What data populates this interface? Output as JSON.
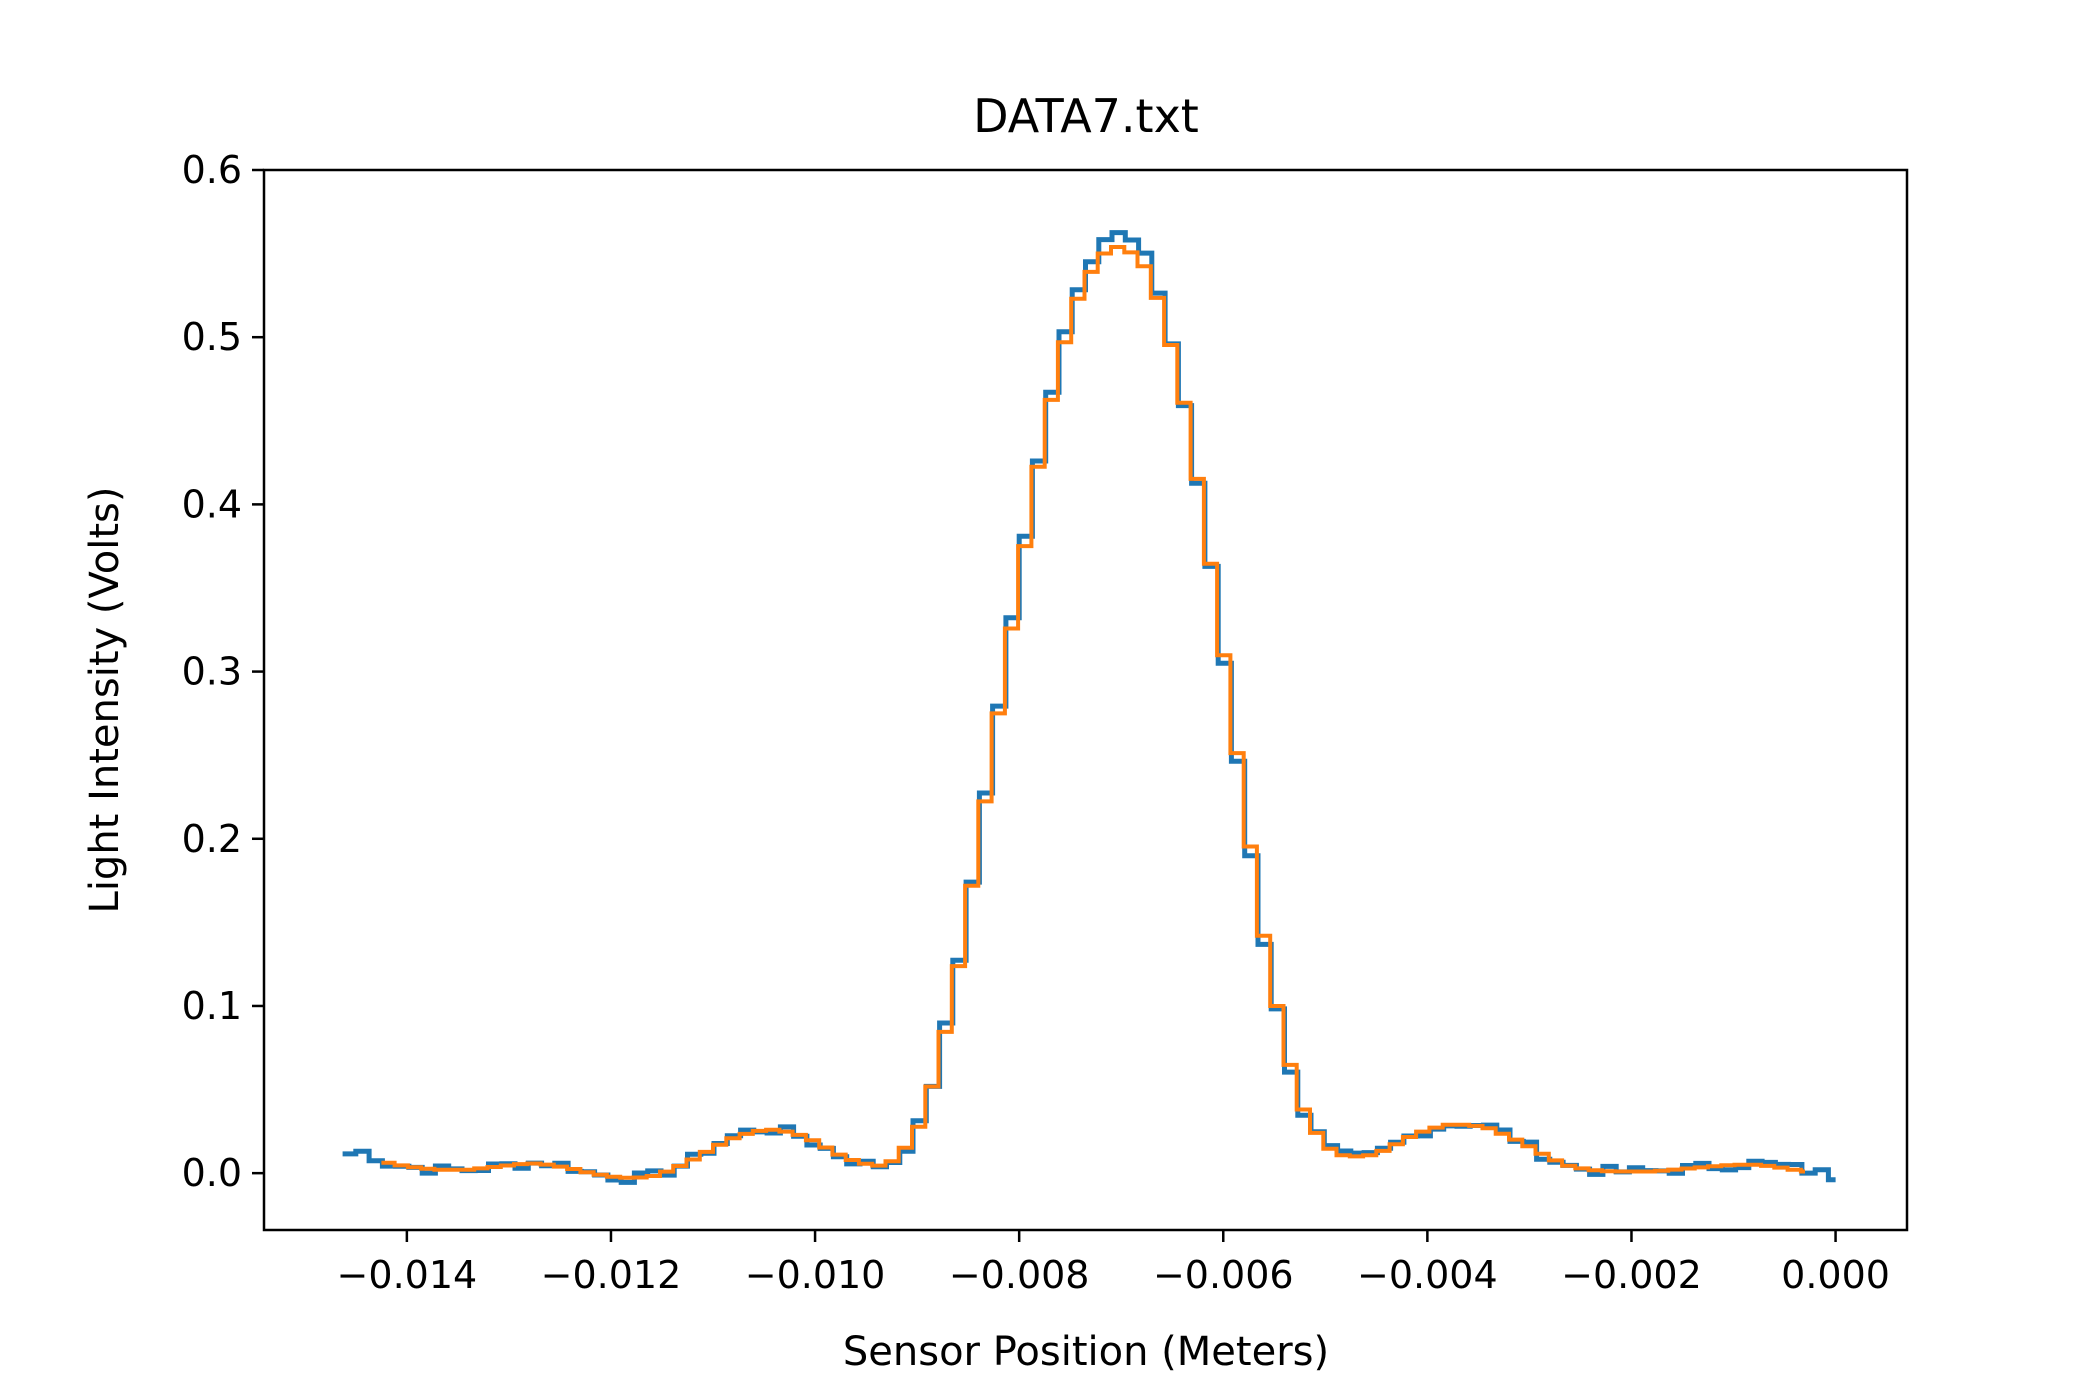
{
  "chart_data": {
    "type": "line",
    "title": "DATA7.txt",
    "xlabel": "Sensor Position (Meters)",
    "ylabel": "Light Intensity (Volts)",
    "xlim": [
      -0.0154,
      0.0007
    ],
    "ylim": [
      -0.034,
      0.6
    ],
    "x_ticks": [
      -0.014,
      -0.012,
      -0.01,
      -0.008,
      -0.006,
      -0.004,
      -0.002,
      0.0
    ],
    "x_tick_labels": [
      "−0.014",
      "−0.012",
      "−0.010",
      "−0.008",
      "−0.006",
      "−0.004",
      "−0.002",
      "0.000"
    ],
    "y_ticks": [
      0.0,
      0.1,
      0.2,
      0.3,
      0.4,
      0.5,
      0.6
    ],
    "y_tick_labels": [
      "0.0",
      "0.1",
      "0.2",
      "0.3",
      "0.4",
      "0.5",
      "0.6"
    ],
    "grid": false,
    "legend": false,
    "series": [
      {
        "color": "#1f77b4",
        "step": 0.00013,
        "points": [
          [
            -0.01463,
            0.011
          ],
          [
            -0.0144,
            0.013
          ],
          [
            -0.0142,
            0.006
          ],
          [
            -0.014,
            0.004
          ],
          [
            -0.0137,
            0.002
          ],
          [
            -0.0134,
            0.002
          ],
          [
            -0.0131,
            0.004
          ],
          [
            -0.0128,
            0.006
          ],
          [
            -0.0126,
            0.006
          ],
          [
            -0.0124,
            0.004
          ],
          [
            -0.0122,
            0.0
          ],
          [
            -0.012,
            -0.002
          ],
          [
            -0.0118,
            -0.003
          ],
          [
            -0.0116,
            -0.002
          ],
          [
            -0.0114,
            0.002
          ],
          [
            -0.0112,
            0.008
          ],
          [
            -0.011,
            0.016
          ],
          [
            -0.0108,
            0.022
          ],
          [
            -0.0106,
            0.026
          ],
          [
            -0.0104,
            0.026
          ],
          [
            -0.0102,
            0.024
          ],
          [
            -0.01,
            0.018
          ],
          [
            -0.0098,
            0.012
          ],
          [
            -0.0096,
            0.007
          ],
          [
            -0.0094,
            0.004
          ],
          [
            -0.0092,
            0.008
          ],
          [
            -0.009,
            0.024
          ],
          [
            -0.0088,
            0.062
          ],
          [
            -0.0086,
            0.122
          ],
          [
            -0.0084,
            0.196
          ],
          [
            -0.0082,
            0.278
          ],
          [
            -0.008,
            0.356
          ],
          [
            -0.0078,
            0.43
          ],
          [
            -0.0076,
            0.492
          ],
          [
            -0.0074,
            0.534
          ],
          [
            -0.0072,
            0.558
          ],
          [
            -0.007,
            0.562
          ],
          [
            -0.0068,
            0.553
          ],
          [
            -0.0066,
            0.522
          ],
          [
            -0.0064,
            0.468
          ],
          [
            -0.0062,
            0.397
          ],
          [
            -0.006,
            0.312
          ],
          [
            -0.0058,
            0.222
          ],
          [
            -0.0056,
            0.14
          ],
          [
            -0.0054,
            0.076
          ],
          [
            -0.0052,
            0.035
          ],
          [
            -0.005,
            0.016
          ],
          [
            -0.0048,
            0.01
          ],
          [
            -0.0046,
            0.009
          ],
          [
            -0.0044,
            0.014
          ],
          [
            -0.0042,
            0.021
          ],
          [
            -0.004,
            0.026
          ],
          [
            -0.0038,
            0.029
          ],
          [
            -0.0036,
            0.03
          ],
          [
            -0.0034,
            0.028
          ],
          [
            -0.0032,
            0.023
          ],
          [
            -0.003,
            0.016
          ],
          [
            -0.0028,
            0.009
          ],
          [
            -0.0026,
            0.004
          ],
          [
            -0.0024,
            0.002
          ],
          [
            -0.0022,
            0.001
          ],
          [
            -0.002,
            0.001
          ],
          [
            -0.0018,
            0.001
          ],
          [
            -0.0016,
            0.002
          ],
          [
            -0.0014,
            0.003
          ],
          [
            -0.0012,
            0.004
          ],
          [
            -0.001,
            0.005
          ],
          [
            -0.0008,
            0.006
          ],
          [
            -0.0006,
            0.005
          ],
          [
            -0.0004,
            0.003
          ],
          [
            -0.0002,
            0.001
          ],
          [
            0.0,
            -0.002
          ]
        ]
      },
      {
        "color": "#ff7f0e",
        "step": 0.00013,
        "points": [
          [
            -0.01425,
            0.007
          ],
          [
            -0.014,
            0.004
          ],
          [
            -0.0137,
            0.002
          ],
          [
            -0.0134,
            0.002
          ],
          [
            -0.0131,
            0.004
          ],
          [
            -0.0128,
            0.006
          ],
          [
            -0.0126,
            0.005
          ],
          [
            -0.0124,
            0.003
          ],
          [
            -0.0122,
            0.0
          ],
          [
            -0.012,
            -0.002
          ],
          [
            -0.0118,
            -0.003
          ],
          [
            -0.0116,
            -0.002
          ],
          [
            -0.0114,
            0.002
          ],
          [
            -0.0112,
            0.008
          ],
          [
            -0.011,
            0.015
          ],
          [
            -0.0108,
            0.021
          ],
          [
            -0.0106,
            0.025
          ],
          [
            -0.0104,
            0.026
          ],
          [
            -0.0102,
            0.024
          ],
          [
            -0.01,
            0.019
          ],
          [
            -0.0098,
            0.012
          ],
          [
            -0.0096,
            0.007
          ],
          [
            -0.0094,
            0.004
          ],
          [
            -0.0092,
            0.008
          ],
          [
            -0.009,
            0.025
          ],
          [
            -0.0088,
            0.062
          ],
          [
            -0.0086,
            0.122
          ],
          [
            -0.0084,
            0.196
          ],
          [
            -0.0082,
            0.277
          ],
          [
            -0.008,
            0.355
          ],
          [
            -0.0078,
            0.428
          ],
          [
            -0.0076,
            0.488
          ],
          [
            -0.0074,
            0.528
          ],
          [
            -0.0072,
            0.549
          ],
          [
            -0.007,
            0.555
          ],
          [
            -0.0068,
            0.546
          ],
          [
            -0.0066,
            0.517
          ],
          [
            -0.0064,
            0.466
          ],
          [
            -0.0062,
            0.396
          ],
          [
            -0.006,
            0.312
          ],
          [
            -0.0058,
            0.222
          ],
          [
            -0.0056,
            0.14
          ],
          [
            -0.0054,
            0.076
          ],
          [
            -0.0052,
            0.035
          ],
          [
            -0.005,
            0.016
          ],
          [
            -0.0048,
            0.01
          ],
          [
            -0.0046,
            0.01
          ],
          [
            -0.0044,
            0.014
          ],
          [
            -0.0042,
            0.021
          ],
          [
            -0.004,
            0.026
          ],
          [
            -0.0038,
            0.029
          ],
          [
            -0.0036,
            0.029
          ],
          [
            -0.0034,
            0.027
          ],
          [
            -0.0032,
            0.022
          ],
          [
            -0.003,
            0.016
          ],
          [
            -0.0028,
            0.009
          ],
          [
            -0.0026,
            0.004
          ],
          [
            -0.0024,
            0.002
          ],
          [
            -0.0022,
            0.001
          ],
          [
            -0.002,
            0.001
          ],
          [
            -0.0018,
            0.001
          ],
          [
            -0.0016,
            0.002
          ],
          [
            -0.0014,
            0.003
          ],
          [
            -0.0012,
            0.004
          ],
          [
            -0.001,
            0.005
          ],
          [
            -0.0008,
            0.005
          ],
          [
            -0.0006,
            0.004
          ],
          [
            -0.0004,
            0.002
          ],
          [
            -0.0003,
            0.001
          ]
        ]
      }
    ]
  }
}
